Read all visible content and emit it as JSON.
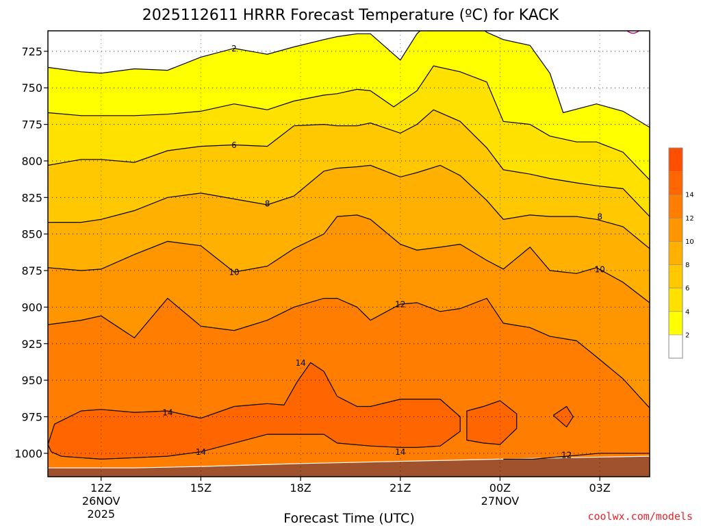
{
  "chart_data": {
    "type": "heatmap",
    "title": "2025112611 HRRR Forecast Temperature (ºC) for KACK",
    "xlabel": "Forecast Time (UTC)",
    "ylabel": "",
    "credit": "coolwx.com/models",
    "x_range_hours": [
      10.4,
      28.5
    ],
    "y_range_hpa": [
      1016,
      711
    ],
    "x_ticks": [
      {
        "hour": 12,
        "label": "12Z",
        "date": "26NOV",
        "year": "2025"
      },
      {
        "hour": 15,
        "label": "15Z",
        "date": "",
        "year": ""
      },
      {
        "hour": 18,
        "label": "18Z",
        "date": "",
        "year": ""
      },
      {
        "hour": 21,
        "label": "21Z",
        "date": "",
        "year": ""
      },
      {
        "hour": 24,
        "label": "00Z",
        "date": "27NOV",
        "year": ""
      },
      {
        "hour": 27,
        "label": "03Z",
        "date": "",
        "year": ""
      }
    ],
    "y_ticks": [
      725,
      750,
      775,
      800,
      825,
      850,
      875,
      900,
      925,
      950,
      975,
      1000
    ],
    "grid": true,
    "colorbar": {
      "placement": "right",
      "levels": [
        0,
        2,
        4,
        6,
        8,
        10,
        12,
        14,
        16
      ],
      "labels": [
        "2",
        "4",
        "6",
        "8",
        "10",
        "12",
        "14"
      ],
      "colors": [
        "#ffffff",
        "#ffff00",
        "#ffe100",
        "#ffc800",
        "#ffb000",
        "#ff9600",
        "#ff7d00",
        "#ff6600",
        "#ff4e00"
      ]
    },
    "surface_color": "#a0522d",
    "isotherms": [
      {
        "value": 2,
        "label": "2",
        "label_at": {
          "hour": 16.0,
          "hpa": 723
        },
        "points": [
          [
            10.4,
            736
          ],
          [
            11.4,
            739
          ],
          [
            12.0,
            740
          ],
          [
            13.0,
            737
          ],
          [
            14.0,
            738
          ],
          [
            15.0,
            729
          ],
          [
            16.0,
            723
          ],
          [
            17.0,
            727
          ],
          [
            17.8,
            722
          ],
          [
            18.7,
            717
          ],
          [
            19.1,
            715
          ],
          [
            19.7,
            713
          ],
          [
            20.1,
            713
          ],
          [
            21.0,
            731
          ],
          [
            21.5,
            713
          ],
          [
            22.2,
            698
          ],
          [
            22.8,
            698
          ],
          [
            23.6,
            712
          ],
          [
            24.1,
            717
          ],
          [
            24.9,
            721
          ],
          [
            25.5,
            740
          ],
          [
            25.9,
            767
          ],
          [
            26.9,
            761
          ],
          [
            27.7,
            766
          ],
          [
            28.5,
            777
          ]
        ]
      },
      {
        "value": 4,
        "label": "",
        "label_at": null,
        "points": [
          [
            10.4,
            767
          ],
          [
            11.4,
            769
          ],
          [
            12.0,
            769
          ],
          [
            13.0,
            769
          ],
          [
            14.0,
            768
          ],
          [
            15.0,
            766
          ],
          [
            16.0,
            761
          ],
          [
            17.0,
            765
          ],
          [
            17.8,
            759
          ],
          [
            18.7,
            755
          ],
          [
            19.1,
            754
          ],
          [
            19.7,
            751
          ],
          [
            20.1,
            752
          ],
          [
            20.8,
            763
          ],
          [
            21.5,
            752
          ],
          [
            22.0,
            735
          ],
          [
            22.8,
            739
          ],
          [
            23.6,
            746
          ],
          [
            24.1,
            773
          ],
          [
            24.9,
            775
          ],
          [
            25.5,
            783
          ],
          [
            26.3,
            787
          ],
          [
            26.9,
            787
          ],
          [
            27.7,
            794
          ],
          [
            28.5,
            813
          ]
        ]
      },
      {
        "value": 6,
        "label": "6",
        "label_at": {
          "hour": 16.0,
          "hpa": 789
        },
        "points": [
          [
            10.4,
            803
          ],
          [
            11.4,
            799
          ],
          [
            12.0,
            799
          ],
          [
            13.0,
            801
          ],
          [
            14.0,
            793
          ],
          [
            15.0,
            790
          ],
          [
            16.0,
            789
          ],
          [
            17.0,
            790
          ],
          [
            17.8,
            776
          ],
          [
            18.7,
            775
          ],
          [
            19.1,
            776
          ],
          [
            19.7,
            776
          ],
          [
            20.1,
            774
          ],
          [
            21.0,
            781
          ],
          [
            21.5,
            775
          ],
          [
            22.0,
            765
          ],
          [
            22.8,
            773
          ],
          [
            23.6,
            791
          ],
          [
            24.1,
            806
          ],
          [
            24.9,
            809
          ],
          [
            25.5,
            812
          ],
          [
            26.3,
            815
          ],
          [
            26.9,
            817
          ],
          [
            27.7,
            819
          ],
          [
            28.5,
            838
          ]
        ]
      },
      {
        "value": 8,
        "label": "8",
        "label_at": {
          "hour": 17.0,
          "hpa": 829
        },
        "points": [
          [
            10.4,
            842
          ],
          [
            11.4,
            842
          ],
          [
            12.0,
            840
          ],
          [
            13.0,
            834
          ],
          [
            14.0,
            825
          ],
          [
            15.0,
            822
          ],
          [
            16.0,
            826
          ],
          [
            17.0,
            830
          ],
          [
            17.8,
            824
          ],
          [
            18.7,
            807
          ],
          [
            19.1,
            805
          ],
          [
            19.7,
            804
          ],
          [
            20.1,
            803
          ],
          [
            21.0,
            811
          ],
          [
            21.5,
            808
          ],
          [
            22.2,
            803
          ],
          [
            22.8,
            810
          ],
          [
            23.6,
            827
          ],
          [
            24.1,
            840
          ],
          [
            24.9,
            837
          ],
          [
            25.5,
            838
          ],
          [
            26.3,
            838
          ],
          [
            26.9,
            840
          ],
          [
            27.7,
            845
          ],
          [
            28.5,
            860
          ]
        ]
      },
      {
        "value": 10,
        "label": "10",
        "label_at": {
          "hour": 16.0,
          "hpa": 876
        },
        "points": [
          [
            10.4,
            873
          ],
          [
            11.4,
            875
          ],
          [
            12.0,
            874
          ],
          [
            13.0,
            864
          ],
          [
            14.0,
            855
          ],
          [
            15.0,
            858
          ],
          [
            16.0,
            876
          ],
          [
            17.0,
            872
          ],
          [
            17.8,
            860
          ],
          [
            18.7,
            850
          ],
          [
            19.1,
            838
          ],
          [
            19.7,
            837
          ],
          [
            20.1,
            840
          ],
          [
            21.0,
            857
          ],
          [
            21.5,
            861
          ],
          [
            22.2,
            859
          ],
          [
            22.8,
            857
          ],
          [
            23.6,
            868
          ],
          [
            24.1,
            874
          ],
          [
            24.9,
            859
          ],
          [
            25.5,
            875
          ],
          [
            26.3,
            877
          ],
          [
            26.9,
            873
          ],
          [
            27.7,
            883
          ],
          [
            28.5,
            897
          ]
        ]
      },
      {
        "value": 12,
        "label": "12",
        "label_at": {
          "hour": 21.0,
          "hpa": 898
        },
        "points": [
          [
            10.4,
            912
          ],
          [
            11.4,
            909
          ],
          [
            12.0,
            906
          ],
          [
            13.0,
            921
          ],
          [
            14.0,
            894
          ],
          [
            15.0,
            913
          ],
          [
            16.0,
            916
          ],
          [
            17.0,
            909
          ],
          [
            17.8,
            900
          ],
          [
            18.7,
            894
          ],
          [
            19.1,
            894
          ],
          [
            19.7,
            900
          ],
          [
            20.1,
            909
          ],
          [
            21.0,
            898
          ],
          [
            21.5,
            897
          ],
          [
            22.2,
            903
          ],
          [
            22.8,
            901
          ],
          [
            23.6,
            894
          ],
          [
            24.1,
            911
          ],
          [
            24.9,
            914
          ],
          [
            25.5,
            920
          ],
          [
            26.3,
            923
          ],
          [
            26.9,
            934
          ],
          [
            27.7,
            949
          ],
          [
            28.5,
            969
          ]
        ]
      },
      {
        "value": 14,
        "label": "14",
        "label_at": {
          "hour": 18.0,
          "hpa": 938
        },
        "points": [
          [
            10.4,
            994
          ],
          [
            10.6,
            980
          ],
          [
            11.4,
            971
          ],
          [
            12.0,
            970
          ],
          [
            13.0,
            972
          ],
          [
            14.0,
            971
          ],
          [
            15.0,
            976
          ],
          [
            16.0,
            968
          ],
          [
            17.0,
            966
          ],
          [
            17.5,
            967
          ],
          [
            17.9,
            951
          ],
          [
            18.3,
            938
          ],
          [
            18.7,
            944
          ],
          [
            19.1,
            961
          ],
          [
            19.7,
            968
          ],
          [
            20.1,
            968
          ],
          [
            21.0,
            963
          ],
          [
            21.5,
            963
          ],
          [
            22.2,
            963
          ],
          [
            22.8,
            975
          ],
          [
            22.8,
            985
          ],
          [
            22.2,
            995
          ],
          [
            21.5,
            996
          ],
          [
            21.0,
            996
          ],
          [
            20.1,
            995
          ],
          [
            19.1,
            993
          ],
          [
            18.7,
            987
          ],
          [
            17.8,
            987
          ],
          [
            17.0,
            987
          ],
          [
            16.0,
            993
          ],
          [
            15.0,
            999
          ],
          [
            14.0,
            1002
          ],
          [
            13.0,
            1003
          ],
          [
            12.0,
            1004
          ],
          [
            11.4,
            1003
          ],
          [
            10.8,
            1002
          ],
          [
            10.5,
            999
          ],
          [
            10.4,
            994
          ]
        ]
      },
      {
        "value": 14,
        "label": "",
        "label_at": null,
        "points": [
          [
            23.0,
            971
          ],
          [
            23.5,
            968
          ],
          [
            24.0,
            964
          ],
          [
            24.5,
            973
          ],
          [
            24.5,
            983
          ],
          [
            24.0,
            994
          ],
          [
            23.5,
            993
          ],
          [
            23.0,
            991
          ],
          [
            23.0,
            980
          ],
          [
            23.0,
            971
          ]
        ]
      },
      {
        "value": 14,
        "label": "",
        "label_at": null,
        "points": [
          [
            25.6,
            974
          ],
          [
            26.0,
            968
          ],
          [
            26.2,
            975
          ],
          [
            26.0,
            982
          ],
          [
            25.6,
            974
          ]
        ]
      },
      {
        "value": 12,
        "label": "12",
        "label_at": {
          "hour": 26.0,
          "hpa": 1001
        },
        "points": [
          [
            24.1,
            1004
          ],
          [
            25.0,
            1004
          ],
          [
            26.0,
            1002
          ],
          [
            27.0,
            1000
          ],
          [
            28.5,
            1000
          ]
        ]
      }
    ],
    "labels_only": [
      {
        "text": "14",
        "hour": 14.0,
        "hpa": 972
      },
      {
        "text": "14",
        "hour": 15.0,
        "hpa": 999
      },
      {
        "text": "14",
        "hour": 21.0,
        "hpa": 999
      },
      {
        "text": "8",
        "hour": 27.0,
        "hpa": 838
      },
      {
        "text": "10",
        "hour": 27.0,
        "hpa": 874
      }
    ],
    "surface": [
      [
        10.4,
        1010
      ],
      [
        13.0,
        1010
      ],
      [
        15.0,
        1009
      ],
      [
        18.0,
        1007
      ],
      [
        20.0,
        1006
      ],
      [
        22.0,
        1005
      ],
      [
        24.0,
        1004
      ],
      [
        26.0,
        1003
      ],
      [
        28.5,
        1002
      ]
    ]
  }
}
